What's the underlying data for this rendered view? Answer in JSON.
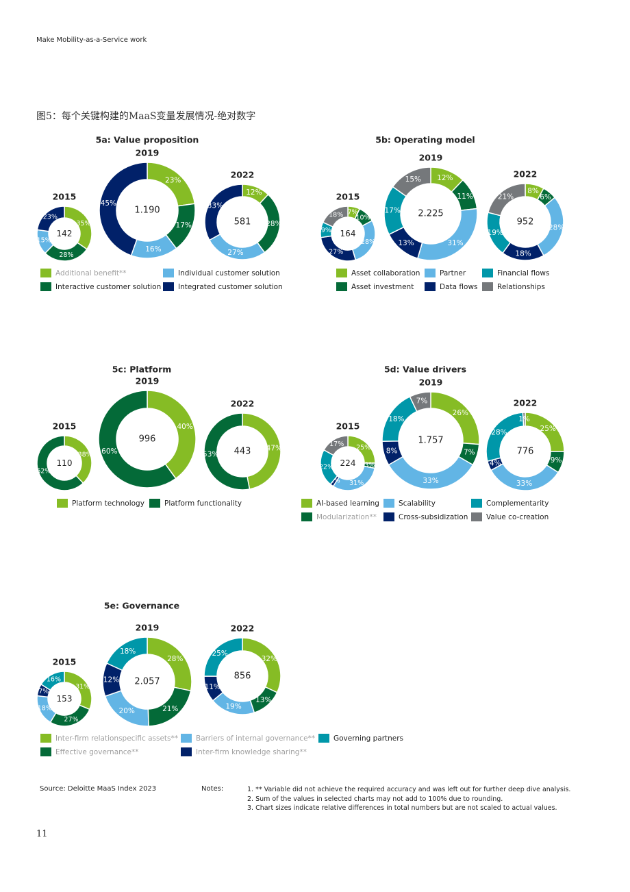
{
  "page": {
    "header": "Make Mobility-as-a-Service work",
    "figure_title": "图5：每个关键构建的MaaS变量发展情况-绝对数字",
    "page_number": "11",
    "source": "Source: Deloitte MaaS Index 2023",
    "notes_label": "Notes:",
    "notes": [
      "1. ** Variable did not achieve the required accuracy and was left out for further deep dive analysis.",
      "2. Sum of the values in selected charts may not add to 100% due to rounding.",
      "3. Chart sizes indicate relative differences in total numbers but are not scaled to actual values."
    ]
  },
  "colors": {
    "lime": "#86bc25",
    "green": "#046a38",
    "lightblue": "#62b5e5",
    "navy": "#012169",
    "teal": "#0097a9",
    "gray": "#75787b",
    "muted_text": "#a0a0a0"
  },
  "chart_data": [
    {
      "type": "donut",
      "title": "5a: Value proposition",
      "legend": [
        {
          "label": "Additional benefit**",
          "color": "lime",
          "muted": true
        },
        {
          "label": "Individual customer solution",
          "color": "lightblue"
        },
        {
          "label": "Interactive customer solution",
          "color": "green"
        },
        {
          "label": "Integrated customer solution",
          "color": "navy"
        }
      ],
      "donuts": [
        {
          "year": "2015",
          "total": "142",
          "segments": [
            {
              "color": "lime",
              "value": 35,
              "label": "35%"
            },
            {
              "color": "green",
              "value": 28,
              "label": "28%"
            },
            {
              "color": "lightblue",
              "value": 15,
              "label": "15%"
            },
            {
              "color": "navy",
              "value": 23,
              "label": "23%"
            }
          ]
        },
        {
          "year": "2019",
          "total": "1.190",
          "segments": [
            {
              "color": "lime",
              "value": 23,
              "label": "23%"
            },
            {
              "color": "green",
              "value": 17,
              "label": "17%"
            },
            {
              "color": "lightblue",
              "value": 16,
              "label": "16%"
            },
            {
              "color": "navy",
              "value": 45,
              "label": "45%"
            }
          ]
        },
        {
          "year": "2022",
          "total": "581",
          "segments": [
            {
              "color": "lime",
              "value": 12,
              "label": "12%"
            },
            {
              "color": "green",
              "value": 28,
              "label": "28%"
            },
            {
              "color": "lightblue",
              "value": 27,
              "label": "27%"
            },
            {
              "color": "navy",
              "value": 33,
              "label": "33%"
            }
          ]
        }
      ]
    },
    {
      "type": "donut",
      "title": "5b: Operating model",
      "legend": [
        {
          "label": "Asset collaboration",
          "color": "lime"
        },
        {
          "label": "Partner",
          "color": "lightblue"
        },
        {
          "label": "Financial flows",
          "color": "teal"
        },
        {
          "label": "Asset investment",
          "color": "green"
        },
        {
          "label": "Data flows",
          "color": "navy"
        },
        {
          "label": "Relationships",
          "color": "gray"
        }
      ],
      "donuts": [
        {
          "year": "2015",
          "total": "164",
          "segments": [
            {
              "color": "lime",
              "value": 7,
              "label": "7%"
            },
            {
              "color": "green",
              "value": 10,
              "label": "10%"
            },
            {
              "color": "lightblue",
              "value": 28,
              "label": "28%"
            },
            {
              "color": "navy",
              "value": 27,
              "label": "27%"
            },
            {
              "color": "teal",
              "value": 9,
              "label": "9%"
            },
            {
              "color": "gray",
              "value": 18,
              "label": "18%"
            }
          ]
        },
        {
          "year": "2019",
          "total": "2.225",
          "segments": [
            {
              "color": "lime",
              "value": 12,
              "label": "12%"
            },
            {
              "color": "green",
              "value": 11,
              "label": "11%"
            },
            {
              "color": "lightblue",
              "value": 31,
              "label": "31%"
            },
            {
              "color": "navy",
              "value": 13,
              "label": "13%"
            },
            {
              "color": "teal",
              "value": 17,
              "label": "17%"
            },
            {
              "color": "gray",
              "value": 15,
              "label": "15%"
            }
          ]
        },
        {
          "year": "2022",
          "total": "952",
          "segments": [
            {
              "color": "lime",
              "value": 8,
              "label": "8%"
            },
            {
              "color": "green",
              "value": 6,
              "label": "6%"
            },
            {
              "color": "lightblue",
              "value": 28,
              "label": "28%"
            },
            {
              "color": "navy",
              "value": 18,
              "label": "18%"
            },
            {
              "color": "teal",
              "value": 19,
              "label": "19%"
            },
            {
              "color": "gray",
              "value": 21,
              "label": "21%"
            }
          ]
        }
      ]
    },
    {
      "type": "donut",
      "title": "5c: Platform",
      "legend": [
        {
          "label": "Platform technology",
          "color": "lime"
        },
        {
          "label": "Platform functionality",
          "color": "green"
        }
      ],
      "donuts": [
        {
          "year": "2015",
          "total": "110",
          "segments": [
            {
              "color": "lime",
              "value": 38,
              "label": "38%"
            },
            {
              "color": "green",
              "value": 62,
              "label": "62%"
            }
          ]
        },
        {
          "year": "2019",
          "total": "996",
          "segments": [
            {
              "color": "lime",
              "value": 40,
              "label": "40%"
            },
            {
              "color": "green",
              "value": 60,
              "label": "60%"
            }
          ]
        },
        {
          "year": "2022",
          "total": "443",
          "segments": [
            {
              "color": "lime",
              "value": 47,
              "label": "47%"
            },
            {
              "color": "green",
              "value": 53,
              "label": "53%"
            }
          ]
        }
      ]
    },
    {
      "type": "donut",
      "title": "5d: Value drivers",
      "legend": [
        {
          "label": "AI-based learning",
          "color": "lime"
        },
        {
          "label": "Scalability",
          "color": "lightblue"
        },
        {
          "label": "Complementarity",
          "color": "teal"
        },
        {
          "label": "Modularization**",
          "color": "green",
          "muted": true
        },
        {
          "label": "Cross-subsidization",
          "color": "navy"
        },
        {
          "label": "Value co-creation",
          "color": "gray"
        }
      ],
      "donuts": [
        {
          "year": "2015",
          "total": "224",
          "segments": [
            {
              "color": "lime",
              "value": 25,
              "label": "25%"
            },
            {
              "color": "green",
              "value": 3,
              "label": "3%"
            },
            {
              "color": "lightblue",
              "value": 31,
              "label": "31%"
            },
            {
              "color": "navy",
              "value": 2,
              "label": "2%"
            },
            {
              "color": "teal",
              "value": 22,
              "label": "22%"
            },
            {
              "color": "gray",
              "value": 17,
              "label": "17%"
            }
          ]
        },
        {
          "year": "2019",
          "total": "1.757",
          "segments": [
            {
              "color": "lime",
              "value": 26,
              "label": "26%"
            },
            {
              "color": "green",
              "value": 7,
              "label": "7%"
            },
            {
              "color": "lightblue",
              "value": 33,
              "label": "33%"
            },
            {
              "color": "navy",
              "value": 8,
              "label": "8%"
            },
            {
              "color": "teal",
              "value": 18,
              "label": "18%"
            },
            {
              "color": "gray",
              "value": 7,
              "label": "7%"
            }
          ]
        },
        {
          "year": "2022",
          "total": "776",
          "segments": [
            {
              "color": "lime",
              "value": 25,
              "label": "25%"
            },
            {
              "color": "green",
              "value": 9,
              "label": "9%"
            },
            {
              "color": "lightblue",
              "value": 33,
              "label": "33%"
            },
            {
              "color": "navy",
              "value": 4,
              "label": "4%"
            },
            {
              "color": "teal",
              "value": 28,
              "label": "28%"
            },
            {
              "color": "gray",
              "value": 1,
              "label": "1%"
            }
          ]
        }
      ]
    },
    {
      "type": "donut",
      "title": "5e: Governance",
      "legend": [
        {
          "label": "Inter-firm relationspecific assets**",
          "color": "lime",
          "muted": true
        },
        {
          "label": "Barriers of internal governance**",
          "color": "lightblue",
          "muted": true
        },
        {
          "label": "Governing partners",
          "color": "teal"
        },
        {
          "label": "Effective governance**",
          "color": "green",
          "muted": true
        },
        {
          "label": "Inter-firm knowledge sharing**",
          "color": "navy",
          "muted": true
        }
      ],
      "donuts": [
        {
          "year": "2015",
          "total": "153",
          "segments": [
            {
              "color": "lime",
              "value": 31,
              "label": "31%"
            },
            {
              "color": "green",
              "value": 27,
              "label": "27%"
            },
            {
              "color": "lightblue",
              "value": 18,
              "label": "18%"
            },
            {
              "color": "navy",
              "value": 7,
              "label": "7%"
            },
            {
              "color": "teal",
              "value": 16,
              "label": "16%"
            }
          ]
        },
        {
          "year": "2019",
          "total": "2.057",
          "segments": [
            {
              "color": "lime",
              "value": 28,
              "label": "28%"
            },
            {
              "color": "green",
              "value": 21,
              "label": "21%"
            },
            {
              "color": "lightblue",
              "value": 20,
              "label": "20%"
            },
            {
              "color": "navy",
              "value": 12,
              "label": "12%"
            },
            {
              "color": "teal",
              "value": 18,
              "label": "18%"
            }
          ]
        },
        {
          "year": "2022",
          "total": "856",
          "segments": [
            {
              "color": "lime",
              "value": 32,
              "label": "32%"
            },
            {
              "color": "green",
              "value": 13,
              "label": "13%"
            },
            {
              "color": "lightblue",
              "value": 19,
              "label": "19%"
            },
            {
              "color": "navy",
              "value": 11,
              "label": "11%"
            },
            {
              "color": "teal",
              "value": 25,
              "label": "25%"
            }
          ]
        }
      ]
    }
  ]
}
